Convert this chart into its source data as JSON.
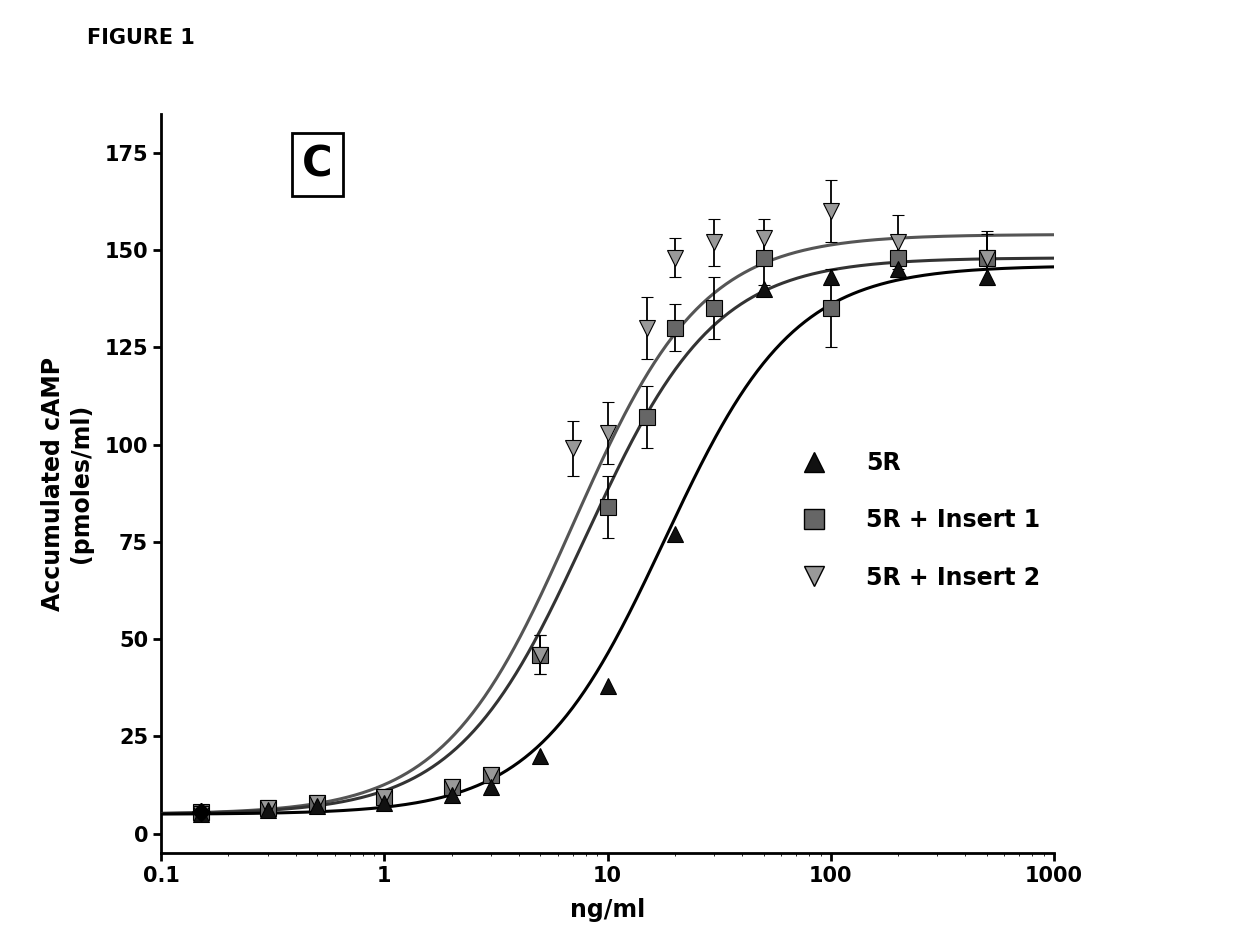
{
  "figure_label": "FIGURE 1",
  "panel_label": "C",
  "xlabel": "ng/ml",
  "ylabel": "Accumulated cAMP\n(pmoles/ml)",
  "xlim": [
    0.1,
    1000
  ],
  "ylim": [
    -5,
    185
  ],
  "yticks": [
    0,
    25,
    50,
    75,
    100,
    125,
    150,
    175
  ],
  "background_color": "#ffffff",
  "series_5R": {
    "label": "5R",
    "x": [
      0.15,
      0.3,
      0.5,
      1.0,
      2.0,
      3.0,
      5.0,
      10.0,
      20.0,
      50.0,
      100.0,
      200.0,
      500.0
    ],
    "y": [
      5.0,
      6.0,
      7.0,
      8.0,
      10.0,
      12.0,
      20.0,
      38.0,
      77.0,
      140.0,
      143.0,
      145.0,
      143.0
    ],
    "ec50": 18.0,
    "emax": 146.0,
    "emin": 5.0,
    "hill": 1.5
  },
  "series_insert1": {
    "label": "5R + Insert 1",
    "x": [
      0.15,
      0.3,
      0.5,
      1.0,
      2.0,
      3.0,
      5.0,
      10.0,
      15.0,
      20.0,
      30.0,
      50.0,
      100.0,
      200.0,
      500.0
    ],
    "y": [
      5.5,
      6.5,
      8.0,
      9.5,
      12.0,
      15.0,
      46.0,
      84.0,
      107.0,
      130.0,
      135.0,
      148.0,
      135.0,
      148.0,
      148.0
    ],
    "yerr": [
      1,
      1,
      1,
      1,
      1,
      1,
      5,
      8,
      8,
      6,
      8,
      7,
      10,
      5,
      7
    ],
    "ec50": 8.0,
    "emax": 148.0,
    "emin": 5.0,
    "hill": 1.5
  },
  "series_insert2": {
    "label": "5R + Insert 2",
    "x": [
      0.15,
      0.3,
      0.5,
      1.0,
      2.0,
      3.0,
      5.0,
      7.0,
      10.0,
      15.0,
      20.0,
      30.0,
      50.0,
      100.0,
      200.0,
      500.0
    ],
    "y": [
      5.0,
      6.5,
      8.0,
      9.5,
      12.0,
      15.0,
      46.0,
      99.0,
      103.0,
      130.0,
      148.0,
      152.0,
      153.0,
      160.0,
      152.0,
      148.0
    ],
    "yerr": [
      1,
      1,
      1,
      1,
      1,
      1,
      5,
      7,
      8,
      8,
      5,
      6,
      5,
      8,
      7,
      6
    ],
    "ec50": 7.0,
    "emax": 154.0,
    "emin": 5.0,
    "hill": 1.5
  },
  "basal_x": 0.15,
  "basal_y": 5.5,
  "legend_fontsize": 17,
  "axis_fontsize": 17,
  "tick_fontsize": 15
}
